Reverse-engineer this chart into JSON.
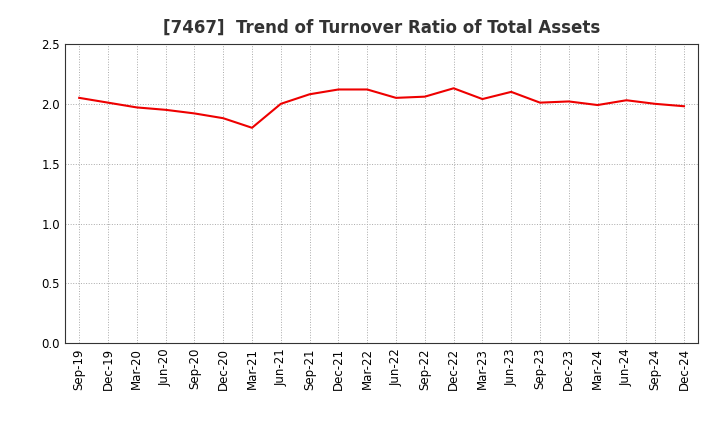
{
  "title": "[7467]  Trend of Turnover Ratio of Total Assets",
  "x_labels": [
    "Sep-19",
    "Dec-19",
    "Mar-20",
    "Jun-20",
    "Sep-20",
    "Dec-20",
    "Mar-21",
    "Jun-21",
    "Sep-21",
    "Dec-21",
    "Mar-22",
    "Jun-22",
    "Sep-22",
    "Dec-22",
    "Mar-23",
    "Jun-23",
    "Sep-23",
    "Dec-23",
    "Mar-24",
    "Jun-24",
    "Sep-24",
    "Dec-24"
  ],
  "y_values": [
    2.05,
    2.01,
    1.97,
    1.95,
    1.92,
    1.88,
    1.8,
    2.0,
    2.08,
    2.12,
    2.12,
    2.05,
    2.06,
    2.13,
    2.04,
    2.1,
    2.01,
    2.02,
    1.99,
    2.03,
    2.0,
    1.98
  ],
  "line_color": "#ee0000",
  "line_width": 1.5,
  "ylim": [
    0.0,
    2.5
  ],
  "yticks": [
    0.0,
    0.5,
    1.0,
    1.5,
    2.0,
    2.5
  ],
  "grid_color": "#aaaaaa",
  "background_color": "#ffffff",
  "title_fontsize": 12,
  "tick_fontsize": 8.5
}
